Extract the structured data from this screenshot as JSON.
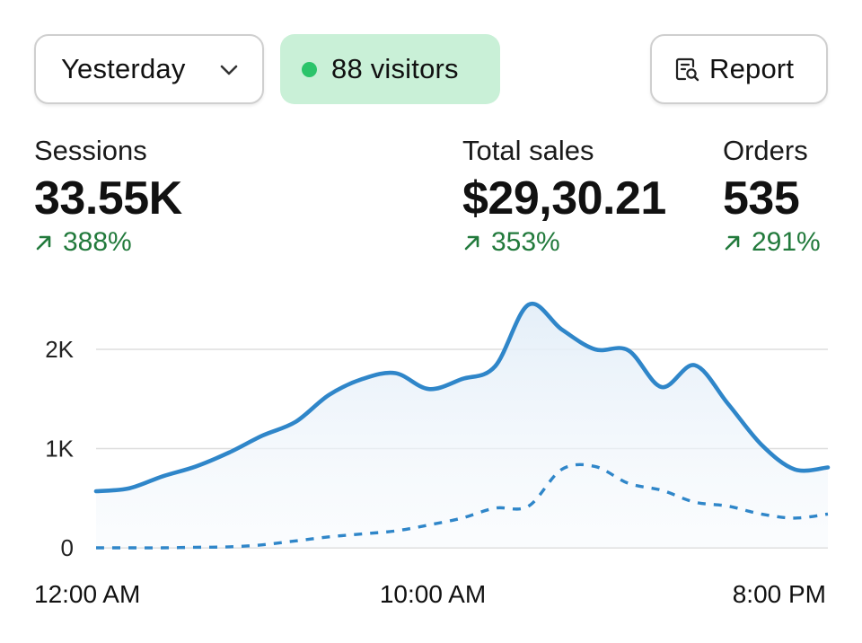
{
  "controls": {
    "period_label": "Yesterday",
    "visitors_label": "88 visitors",
    "report_label": "Report"
  },
  "metrics": [
    {
      "label": "Sessions",
      "value": "33.55K",
      "change": "388%"
    },
    {
      "label": "Total sales",
      "value": "$29,30.21",
      "change": "353%"
    },
    {
      "label": "Orders",
      "value": "535",
      "change": "291%"
    }
  ],
  "colors": {
    "accent": "#2f86c9",
    "positive": "#227a3c",
    "live_dot": "#2bc46a",
    "live_pill": "#c9f0d7"
  },
  "chart_data": {
    "type": "line",
    "x_tick_labels": [
      "12:00 AM",
      "10:00 AM",
      "8:00 PM"
    ],
    "y_tick_labels": [
      "0",
      "1K",
      "2K"
    ],
    "ylim": [
      0,
      2000
    ],
    "grid": true,
    "series": [
      {
        "style": "solid",
        "fill": true,
        "values": [
          570,
          600,
          720,
          820,
          960,
          1130,
          1270,
          1540,
          1700,
          1760,
          1600,
          1700,
          1830,
          2450,
          2200,
          2000,
          1990,
          1620,
          1840,
          1450,
          1040,
          790,
          810
        ]
      },
      {
        "style": "dashed",
        "fill": false,
        "values": [
          0,
          0,
          0,
          5,
          10,
          30,
          70,
          110,
          140,
          170,
          230,
          300,
          400,
          420,
          790,
          820,
          650,
          580,
          460,
          420,
          340,
          300,
          340
        ]
      }
    ]
  }
}
